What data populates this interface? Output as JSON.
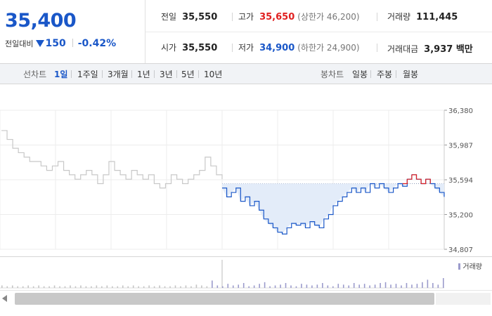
{
  "price": {
    "current": "35,400",
    "change_label": "전일대비",
    "change_amount": "150",
    "change_percent": "-0.42%"
  },
  "stats": {
    "prev_close": {
      "label": "전일",
      "value": "35,550"
    },
    "high": {
      "label": "고가",
      "value": "35,650",
      "sub": "(상한가 46,200)"
    },
    "volume": {
      "label": "거래량",
      "value": "111,445"
    },
    "open": {
      "label": "시가",
      "value": "35,550"
    },
    "low": {
      "label": "저가",
      "value": "34,900",
      "sub": "(하한가 24,900)"
    },
    "amount": {
      "label": "거래대금",
      "value": "3,937 백만"
    }
  },
  "toolbar": {
    "line_label": "선차트",
    "periods": [
      "1일",
      "1주일",
      "3개월",
      "1년",
      "3년",
      "5년",
      "10년"
    ],
    "active_period": "1일",
    "candle_label": "봉차트",
    "candles": [
      "일봉",
      "주봉",
      "월봉"
    ]
  },
  "volume_legend": "거래량",
  "colors": {
    "accent": "#1a57c8",
    "up": "#e02020",
    "prev_day_line": "#c8c8c8",
    "fill": "#e3ecf9"
  },
  "chart_data": {
    "type": "line",
    "ylim": [
      34807,
      36380
    ],
    "yticks": [
      "36,380",
      "35,987",
      "35,594",
      "35,200",
      "34,807"
    ],
    "reference": 35550,
    "series": [
      {
        "values": [
          36150,
          36050,
          35950,
          35900,
          35850,
          35800,
          35800,
          35750,
          35700,
          35750,
          35800,
          35700,
          35650,
          35600,
          35650,
          35700,
          35650,
          35550,
          35650,
          35800,
          35700,
          35650,
          35600,
          35700,
          35650,
          35600,
          35650,
          35550,
          35500,
          35550,
          35650,
          35600,
          35550,
          35600,
          35650,
          35700,
          35850,
          35750,
          35650,
          35600
        ]
      },
      {
        "values": [
          35500,
          35400,
          35450,
          35500,
          35350,
          35400,
          35300,
          35350,
          35250,
          35150,
          35100,
          35050,
          35000,
          34980,
          35050,
          35100,
          35080,
          35100,
          35050,
          35120,
          35080,
          35050,
          35150,
          35200,
          35300,
          35350,
          35400,
          35450,
          35500,
          35450,
          35500,
          35450,
          35550,
          35500,
          35550,
          35500,
          35450,
          35500,
          35550,
          35520,
          35600,
          35650,
          35600,
          35550,
          35600,
          35550,
          35500,
          35450,
          35400
        ]
      }
    ],
    "volume": [
      3,
      2,
      3,
      2,
      2,
      3,
      2,
      3,
      2,
      2,
      3,
      2,
      2,
      3,
      2,
      3,
      2,
      2,
      3,
      2,
      3,
      2,
      2,
      3,
      2,
      3,
      2,
      2,
      3,
      2,
      3,
      2,
      2,
      3,
      2,
      3,
      2,
      4,
      3,
      2,
      9,
      3,
      2,
      5,
      3,
      4,
      6,
      2,
      3,
      5,
      7,
      2,
      3,
      4,
      6,
      3,
      2,
      5,
      4,
      3,
      4,
      6,
      3,
      2,
      5,
      4,
      3,
      6,
      4,
      5,
      3,
      4,
      6,
      7,
      4,
      5,
      3,
      6,
      4,
      5,
      7,
      10,
      6,
      4,
      12
    ]
  }
}
